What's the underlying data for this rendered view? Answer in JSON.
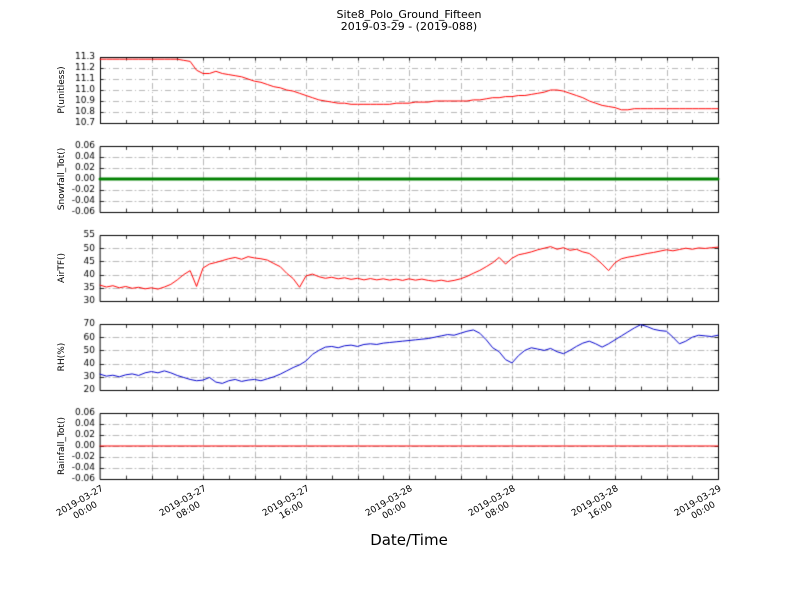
{
  "title": "Site8_Polo_Ground_Fifteen",
  "subtitle": "2019-03-29 - (2019-088)",
  "x_axis": {
    "label": "Date/Time",
    "range_hours": [
      0,
      48
    ],
    "ticks": [
      {
        "hour": 0,
        "label": "2019-03-27\n00:00"
      },
      {
        "hour": 8,
        "label": "2019-03-27\n08:00"
      },
      {
        "hour": 16,
        "label": "2019-03-27\n16:00"
      },
      {
        "hour": 24,
        "label": "2019-03-28\n00:00"
      },
      {
        "hour": 32,
        "label": "2019-03-28\n08:00"
      },
      {
        "hour": 40,
        "label": "2019-03-28\n16:00"
      },
      {
        "hour": 48,
        "label": "2019-03-29\n00:00"
      }
    ]
  },
  "chart_data": [
    {
      "type": "line",
      "ylabel": "P(unitless)",
      "color": "#ff0000",
      "linewidth": 1,
      "ylim": [
        10.7,
        11.3
      ],
      "yticks": [
        10.7,
        10.8,
        10.9,
        11.0,
        11.1,
        11.2,
        11.3
      ],
      "ytick_labels": [
        "10.7",
        "10.8",
        "10.9",
        "11.0",
        "11.1",
        "11.2",
        "11.3"
      ],
      "x_step": 0.5,
      "values": [
        11.28,
        11.28,
        11.28,
        11.28,
        11.28,
        11.28,
        11.28,
        11.28,
        11.28,
        11.28,
        11.28,
        11.28,
        11.28,
        11.27,
        11.26,
        11.18,
        11.15,
        11.15,
        11.17,
        11.15,
        11.14,
        11.13,
        11.12,
        11.1,
        11.08,
        11.07,
        11.05,
        11.03,
        11.02,
        11.0,
        10.99,
        10.97,
        10.95,
        10.93,
        10.91,
        10.9,
        10.89,
        10.88,
        10.88,
        10.87,
        10.87,
        10.87,
        10.87,
        10.87,
        10.87,
        10.87,
        10.88,
        10.88,
        10.88,
        10.89,
        10.89,
        10.89,
        10.9,
        10.9,
        10.9,
        10.9,
        10.9,
        10.9,
        10.91,
        10.91,
        10.92,
        10.93,
        10.93,
        10.94,
        10.94,
        10.95,
        10.95,
        10.96,
        10.97,
        10.98,
        11.0,
        11.0,
        10.99,
        10.97,
        10.95,
        10.93,
        10.9,
        10.88,
        10.86,
        10.85,
        10.84,
        10.82,
        10.82,
        10.83,
        10.83,
        10.83,
        10.83,
        10.83,
        10.83,
        10.83,
        10.83,
        10.83,
        10.83,
        10.83,
        10.83,
        10.83,
        10.83
      ]
    },
    {
      "type": "line",
      "ylabel": "Snowfall_Tot()",
      "color": "#008000",
      "linewidth": 3,
      "ylim": [
        -0.06,
        0.06
      ],
      "yticks": [
        -0.06,
        -0.04,
        -0.02,
        0.0,
        0.02,
        0.04,
        0.06
      ],
      "ytick_labels": [
        "-0.06",
        "-0.04",
        "-0.02",
        "0.00",
        "0.02",
        "0.04",
        "0.06"
      ],
      "x_step": 48,
      "values": [
        0,
        0
      ]
    },
    {
      "type": "line",
      "ylabel": "AirTF()",
      "color": "#ff0000",
      "linewidth": 1,
      "ylim": [
        30,
        55
      ],
      "yticks": [
        30,
        35,
        40,
        45,
        50,
        55
      ],
      "ytick_labels": [
        "30",
        "35",
        "40",
        "45",
        "50",
        "55"
      ],
      "x_step": 0.5,
      "values": [
        36.0,
        35.3,
        35.8,
        35.0,
        35.5,
        34.8,
        35.2,
        34.6,
        35.0,
        34.5,
        35.3,
        36.3,
        38.0,
        40.0,
        41.5,
        35.5,
        42.5,
        44.0,
        44.6,
        45.3,
        46.0,
        46.5,
        45.8,
        46.8,
        46.3,
        46.0,
        45.5,
        44.2,
        43.0,
        40.5,
        38.5,
        35.2,
        39.5,
        40.2,
        39.2,
        38.6,
        39.0,
        38.4,
        38.8,
        38.2,
        38.6,
        38.0,
        38.5,
        38.0,
        38.4,
        37.9,
        38.3,
        37.8,
        38.4,
        37.9,
        38.3,
        37.8,
        37.5,
        37.9,
        37.4,
        37.8,
        38.4,
        39.3,
        40.5,
        41.6,
        43.0,
        44.5,
        46.5,
        44.0,
        46.2,
        47.5,
        48.0,
        48.6,
        49.4,
        50.0,
        50.6,
        49.6,
        50.2,
        49.2,
        49.6,
        48.6,
        48.0,
        46.2,
        44.0,
        41.5,
        44.5,
        46.0,
        46.6,
        47.0,
        47.5,
        48.0,
        48.4,
        48.9,
        49.4,
        49.0,
        49.5,
        50.0,
        49.6,
        50.1,
        49.9,
        50.2,
        50.4
      ]
    },
    {
      "type": "line",
      "ylabel": "RH(%)",
      "color": "#0000cc",
      "linewidth": 1,
      "ylim": [
        20,
        70
      ],
      "yticks": [
        20,
        30,
        40,
        50,
        60,
        70
      ],
      "ytick_labels": [
        "20",
        "30",
        "40",
        "50",
        "60",
        "70"
      ],
      "x_step": 0.5,
      "values": [
        32.0,
        30.5,
        31.2,
        30.0,
        31.5,
        32.2,
        31.0,
        33.0,
        34.0,
        33.0,
        34.5,
        33.0,
        31.0,
        29.5,
        28.0,
        27.0,
        27.5,
        29.5,
        26.0,
        25.0,
        27.0,
        28.0,
        26.5,
        27.5,
        28.0,
        27.0,
        28.5,
        30.0,
        32.0,
        34.5,
        37.0,
        39.0,
        42.0,
        47.0,
        50.0,
        52.5,
        53.0,
        52.0,
        53.5,
        54.0,
        53.0,
        54.5,
        55.0,
        54.5,
        55.5,
        56.0,
        56.5,
        57.0,
        57.5,
        58.0,
        58.5,
        59.0,
        60.0,
        61.0,
        62.0,
        61.5,
        63.0,
        64.5,
        65.5,
        63.0,
        58.0,
        52.0,
        49.0,
        43.0,
        40.5,
        46.0,
        50.0,
        52.0,
        51.0,
        50.0,
        51.5,
        49.0,
        47.5,
        50.0,
        53.0,
        55.5,
        57.0,
        55.0,
        52.5,
        55.0,
        58.0,
        61.0,
        64.0,
        67.0,
        69.5,
        68.0,
        66.0,
        65.0,
        64.5,
        60.0,
        55.0,
        57.0,
        60.0,
        61.5,
        61.0,
        60.5,
        61.5
      ]
    },
    {
      "type": "line",
      "ylabel": "Rainfall_Tot()",
      "color": "#ff0000",
      "linewidth": 1,
      "ylim": [
        -0.06,
        0.06
      ],
      "yticks": [
        -0.06,
        -0.04,
        -0.02,
        0.0,
        0.02,
        0.04,
        0.06
      ],
      "ytick_labels": [
        "-0.06",
        "-0.04",
        "-0.02",
        "0.00",
        "0.02",
        "0.04",
        "0.06"
      ],
      "x_step": 48,
      "values": [
        0,
        0
      ]
    }
  ]
}
